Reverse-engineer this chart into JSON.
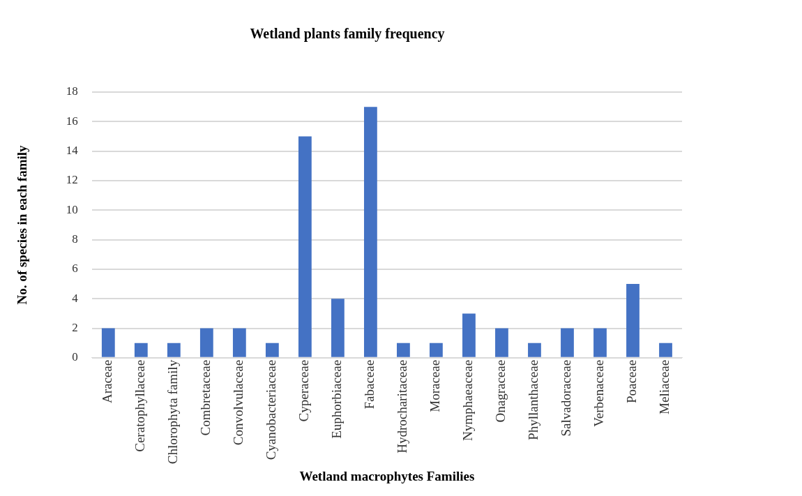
{
  "chart_data": {
    "type": "bar",
    "title": "Wetland plants family frequency",
    "xlabel": "Wetland macrophytes Families",
    "ylabel": "No. of species in each family",
    "categories": [
      "Araceae",
      "Ceratophyllaceae",
      "Chlorophyta family",
      "Combretaceae",
      "Convolvulaceae",
      "Cyanobacteriaceae",
      "Cyperaceae",
      "Euphorbiaceae",
      "Fabaceae",
      "Hydrocharitaceae",
      "Moraceae",
      "Nymphaeaceae",
      "Onagraceae",
      "Phyllanthaceae",
      "Salvadoraceae",
      "Verbenaceae",
      "Poaceae",
      "Meliaceae"
    ],
    "values": [
      2,
      1,
      1,
      2,
      2,
      1,
      15,
      4,
      17,
      1,
      1,
      3,
      2,
      1,
      2,
      2,
      5,
      1
    ],
    "color": "#4472c4",
    "ylim": [
      0,
      18
    ],
    "yticks": [
      0,
      2,
      4,
      6,
      8,
      10,
      12,
      14,
      16,
      18
    ],
    "grid": "y",
    "legend": false
  }
}
